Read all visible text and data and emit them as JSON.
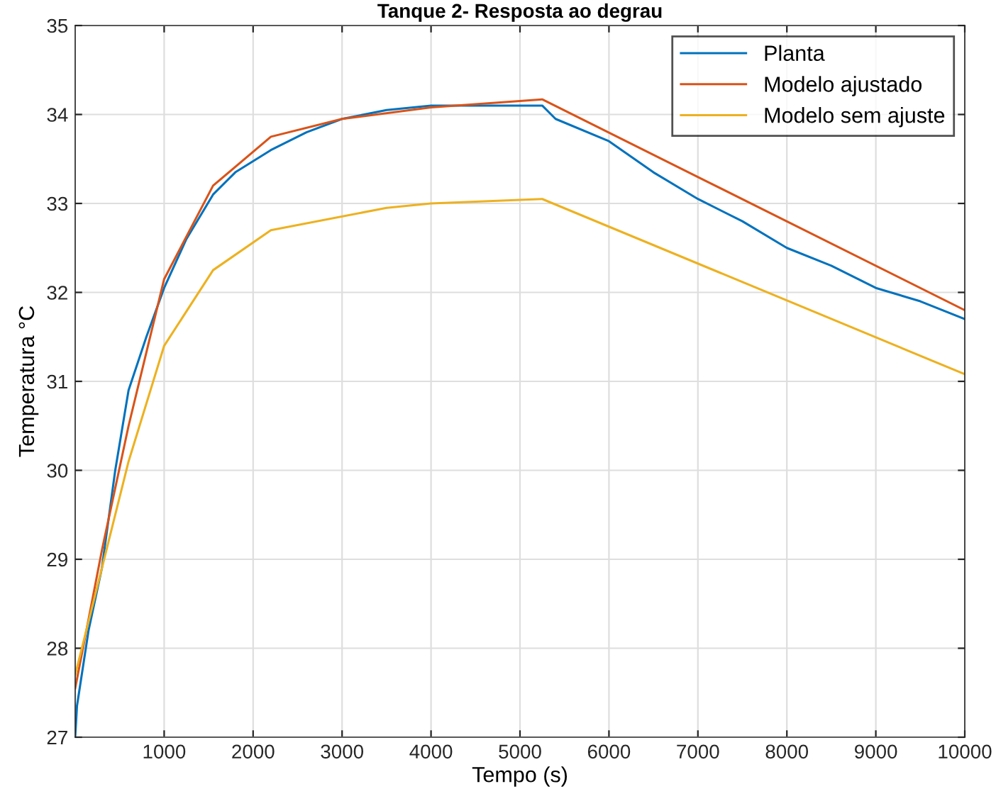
{
  "chart_data": {
    "type": "line",
    "title": "Tanque 2- Resposta ao degrau",
    "xlabel": "Tempo (s)",
    "ylabel": "Temperatura °C",
    "xlim": [
      0,
      10000
    ],
    "xticks": [
      1000,
      2000,
      3000,
      4000,
      5000,
      6000,
      7000,
      8000,
      9000,
      10000
    ],
    "ylim": [
      27,
      35
    ],
    "yticks": [
      27,
      28,
      29,
      30,
      31,
      32,
      33,
      34,
      35
    ],
    "grid": true,
    "legend": "top right",
    "series": [
      {
        "name": "Planta",
        "color": "#0072bd",
        "x": [
          0,
          20,
          150,
          300,
          450,
          600,
          800,
          1000,
          1250,
          1550,
          1800,
          2200,
          2600,
          3000,
          3500,
          4000,
          4500,
          5000,
          5250,
          5400,
          6000,
          6500,
          7000,
          7500,
          8000,
          8500,
          9000,
          9500,
          10000
        ],
        "values": [
          27.0,
          27.35,
          28.2,
          28.9,
          30.0,
          30.9,
          31.5,
          32.05,
          32.6,
          33.1,
          33.35,
          33.6,
          33.8,
          33.95,
          34.05,
          34.1,
          34.1,
          34.1,
          34.1,
          33.95,
          33.7,
          33.35,
          33.05,
          32.8,
          32.5,
          32.3,
          32.05,
          31.9,
          31.7
        ]
      },
      {
        "name": "Modelo ajustado",
        "color": "#d95319",
        "x": [
          0,
          300,
          600,
          1000,
          1550,
          2200,
          3000,
          4000,
          5250,
          10000
        ],
        "values": [
          27.55,
          29.1,
          30.5,
          32.15,
          33.2,
          33.75,
          33.95,
          34.08,
          34.17,
          31.8
        ]
      },
      {
        "name": "Modelo sem ajuste",
        "color": "#edb120",
        "x": [
          0,
          300,
          600,
          1000,
          1550,
          2200,
          3500,
          4000,
          5250,
          10000
        ],
        "values": [
          27.7,
          28.9,
          30.1,
          31.4,
          32.25,
          32.7,
          32.95,
          33.0,
          33.05,
          31.08
        ]
      }
    ]
  }
}
